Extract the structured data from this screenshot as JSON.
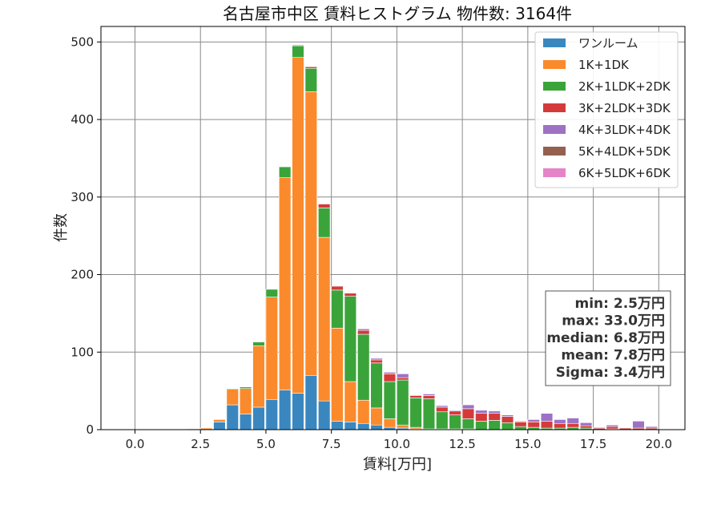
{
  "chart_data": {
    "type": "bar",
    "stacked": true,
    "title": "名古屋市中区 賃料ヒストグラム 物件数: 3164件",
    "xlabel": "賃料[万円]",
    "ylabel": "件数",
    "xlim": [
      -1.3,
      21.0
    ],
    "ylim": [
      0,
      520
    ],
    "xticks": [
      0.0,
      2.5,
      5.0,
      7.5,
      10.0,
      12.5,
      15.0,
      17.5,
      20.0
    ],
    "xtick_labels": [
      "0.0",
      "2.5",
      "5.0",
      "7.5",
      "10.0",
      "12.5",
      "15.0",
      "17.5",
      "20.0"
    ],
    "yticks": [
      0,
      100,
      200,
      300,
      400,
      500
    ],
    "ytick_labels": [
      "0",
      "100",
      "200",
      "300",
      "400",
      "500"
    ],
    "grid": true,
    "legend_position": "top-right",
    "bin_width": 0.5,
    "bin_starts": [
      2.0,
      2.5,
      3.0,
      3.5,
      4.0,
      4.5,
      5.0,
      5.5,
      6.0,
      6.5,
      7.0,
      7.5,
      8.0,
      8.5,
      9.0,
      9.5,
      10.0,
      10.5,
      11.0,
      11.5,
      12.0,
      12.5,
      13.0,
      13.5,
      14.0,
      14.5,
      15.0,
      15.5,
      16.0,
      16.5,
      17.0,
      17.5,
      18.0,
      18.5,
      19.0,
      19.5
    ],
    "series": [
      {
        "name": "ワンルーム",
        "color": "#3a87c0",
        "values": [
          0,
          0,
          10,
          32,
          20,
          29,
          39,
          51,
          47,
          70,
          37,
          11,
          10,
          8,
          6,
          3,
          2,
          1,
          1,
          0,
          0,
          0,
          0,
          0,
          0,
          0,
          0,
          0,
          0,
          0,
          0,
          0,
          0,
          0,
          0,
          0
        ]
      },
      {
        "name": "1K+1DK",
        "color": "#fb8a2c",
        "values": [
          1,
          2,
          3,
          20,
          33,
          79,
          132,
          274,
          433,
          366,
          211,
          120,
          52,
          30,
          22,
          11,
          4,
          2,
          0,
          1,
          1,
          1,
          0,
          0,
          0,
          0,
          0,
          0,
          0,
          0,
          0,
          0,
          0,
          0,
          0,
          0
        ]
      },
      {
        "name": "2K+1LDK+2DK",
        "color": "#3aa43a",
        "values": [
          0,
          0,
          0,
          1,
          2,
          5,
          10,
          14,
          15,
          30,
          38,
          49,
          110,
          85,
          58,
          48,
          58,
          38,
          39,
          22,
          18,
          13,
          11,
          12,
          9,
          4,
          3,
          2,
          2,
          3,
          2,
          0,
          1,
          0,
          0,
          0
        ]
      },
      {
        "name": "3K+2LDK+3DK",
        "color": "#d53a3a",
        "values": [
          0,
          0,
          0,
          0,
          0,
          0,
          0,
          0,
          1,
          2,
          5,
          5,
          4,
          5,
          4,
          10,
          3,
          3,
          4,
          6,
          5,
          13,
          10,
          9,
          8,
          6,
          7,
          9,
          6,
          5,
          3,
          2,
          3,
          2,
          2,
          2
        ]
      },
      {
        "name": "4K+3LDK+4DK",
        "color": "#9d72c4",
        "values": [
          0,
          0,
          0,
          0,
          0,
          0,
          0,
          0,
          0,
          0,
          0,
          0,
          0,
          2,
          2,
          2,
          5,
          0,
          2,
          2,
          1,
          5,
          4,
          3,
          2,
          1,
          3,
          10,
          5,
          7,
          4,
          1,
          2,
          0,
          9,
          2
        ]
      },
      {
        "name": "5K+4LDK+5DK",
        "color": "#94604f",
        "values": [
          0,
          0,
          0,
          0,
          0,
          0,
          0,
          0,
          0,
          0,
          0,
          0,
          0,
          0,
          0,
          0,
          0,
          0,
          0,
          0,
          0,
          0,
          0,
          0,
          0,
          0,
          0,
          0,
          0,
          0,
          0,
          0,
          0,
          0,
          0,
          0
        ]
      },
      {
        "name": "6K+5LDK+6DK",
        "color": "#e584c8",
        "values": [
          0,
          0,
          0,
          0,
          0,
          0,
          0,
          0,
          0,
          0,
          0,
          0,
          0,
          0,
          0,
          0,
          0,
          0,
          0,
          0,
          0,
          0,
          0,
          0,
          0,
          0,
          0,
          0,
          0,
          0,
          0,
          0,
          0,
          0,
          0,
          0
        ]
      }
    ],
    "annotations": {
      "stats": [
        "min: 2.5万円",
        "max: 33.0万円",
        "median: 6.8万円",
        "mean: 7.8万円",
        "Sigma: 3.4万円"
      ]
    }
  }
}
